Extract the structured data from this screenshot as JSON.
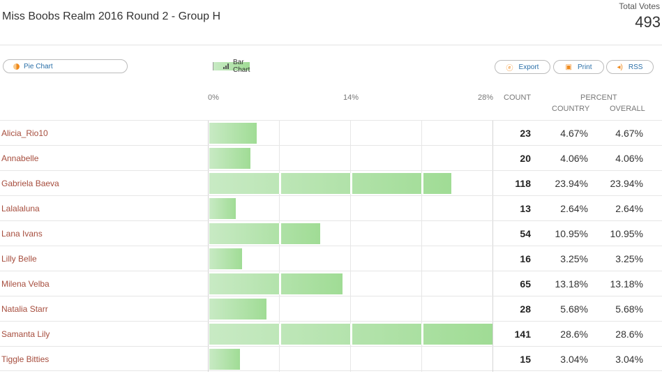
{
  "header": {
    "title": "Miss Boobs Realm 2016 Round 2 - Group H",
    "total_votes_label": "Total Votes",
    "total_votes_value": "493"
  },
  "view_toggle": {
    "pie_label": "Pie Chart",
    "bar_label": "Bar Chart",
    "pie_icon": "pie-chart-icon",
    "bar_icon": "bar-chart-icon",
    "active": "Bar Chart"
  },
  "actions": {
    "export_label": "Export",
    "print_label": "Print",
    "rss_label": "RSS",
    "export_icon": "export-icon",
    "print_icon": "printer-icon",
    "rss_icon": "rss-icon"
  },
  "columns": {
    "axis_ticks": [
      "0%",
      "14%",
      "28%"
    ],
    "count": "COUNT",
    "percent": "PERCENT",
    "country": "COUNTRY",
    "overall": "OVERALL"
  },
  "colors": {
    "name_link": "#a64d3d",
    "bar_light": "#c8eac4",
    "bar_dark": "#a0dc95",
    "accent": "#f08a1c",
    "button_text": "#2a6fa8"
  },
  "chart_data": {
    "type": "bar",
    "orientation": "horizontal",
    "xlim": [
      0,
      28
    ],
    "x_ticks": [
      "0%",
      "14%",
      "28%"
    ],
    "categories": [
      "Alicia_Rio10",
      "Annabelle",
      "Gabriela Baeva",
      "Lalalaluna",
      "Lana Ivans",
      "Lilly Belle",
      "Milena Velba",
      "Natalia Starr",
      "Samanta Lily",
      "Tiggle Bitties"
    ],
    "values": [
      4.67,
      4.06,
      23.94,
      2.64,
      10.95,
      3.25,
      13.18,
      5.68,
      28.6,
      3.04
    ]
  },
  "rows": [
    {
      "name": "Alicia_Rio10",
      "count": "23",
      "country": "4.67%",
      "overall": "4.67%",
      "pct": 4.67
    },
    {
      "name": "Annabelle",
      "count": "20",
      "country": "4.06%",
      "overall": "4.06%",
      "pct": 4.06
    },
    {
      "name": "Gabriela Baeva",
      "count": "118",
      "country": "23.94%",
      "overall": "23.94%",
      "pct": 23.94
    },
    {
      "name": "Lalalaluna",
      "count": "13",
      "country": "2.64%",
      "overall": "2.64%",
      "pct": 2.64
    },
    {
      "name": "Lana Ivans",
      "count": "54",
      "country": "10.95%",
      "overall": "10.95%",
      "pct": 10.95
    },
    {
      "name": "Lilly Belle",
      "count": "16",
      "country": "3.25%",
      "overall": "3.25%",
      "pct": 3.25
    },
    {
      "name": "Milena Velba",
      "count": "65",
      "country": "13.18%",
      "overall": "13.18%",
      "pct": 13.18
    },
    {
      "name": "Natalia Starr",
      "count": "28",
      "country": "5.68%",
      "overall": "5.68%",
      "pct": 5.68
    },
    {
      "name": "Samanta Lily",
      "count": "141",
      "country": "28.6%",
      "overall": "28.6%",
      "pct": 28.6
    },
    {
      "name": "Tiggle Bitties",
      "count": "15",
      "country": "3.04%",
      "overall": "3.04%",
      "pct": 3.04
    }
  ]
}
